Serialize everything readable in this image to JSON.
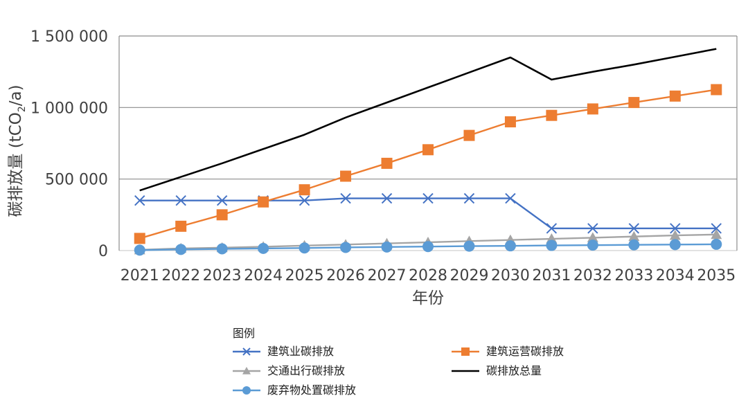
{
  "chart_data": {
    "type": "line",
    "title": "",
    "xlabel": "年份",
    "ylabel": "碳排放量 (tCO",
    "ylabel_sub": "2",
    "ylabel_tail": "/a)",
    "ylim": [
      0,
      1500000
    ],
    "yticks": [
      0,
      500000,
      1000000,
      1500000
    ],
    "ytick_labels": [
      "0",
      "500 000",
      "1 000 000",
      "1 500 000"
    ],
    "x": [
      "2021",
      "2022",
      "2023",
      "2024",
      "2025",
      "2026",
      "2027",
      "2028",
      "2029",
      "2030",
      "2031",
      "2032",
      "2033",
      "2034",
      "2035"
    ],
    "grid": true,
    "legend_title": "图例",
    "legend_position": "bottom",
    "series": [
      {
        "name": "建筑业碳排放",
        "color": "#4472C4",
        "marker": "x",
        "values": [
          350000,
          350000,
          350000,
          350000,
          350000,
          365000,
          365000,
          365000,
          365000,
          365000,
          155000,
          155000,
          155000,
          155000,
          155000
        ]
      },
      {
        "name": "建筑运营碳排放",
        "color": "#ED7D31",
        "marker": "square",
        "values": [
          85000,
          170000,
          250000,
          340000,
          425000,
          520000,
          610000,
          705000,
          805000,
          900000,
          945000,
          990000,
          1035000,
          1080000,
          1125000
        ]
      },
      {
        "name": "交通出行碳排放",
        "color": "#A5A5A5",
        "marker": "triangle",
        "values": [
          5000,
          15000,
          20000,
          27000,
          35000,
          42000,
          50000,
          58000,
          66000,
          74000,
          82000,
          90000,
          98000,
          106000,
          112000
        ]
      },
      {
        "name": "碳排放总量",
        "color": "#000000",
        "marker": "none",
        "values": [
          420000,
          515000,
          610000,
          710000,
          810000,
          930000,
          1035000,
          1140000,
          1245000,
          1350000,
          1195000,
          1250000,
          1300000,
          1355000,
          1410000
        ]
      },
      {
        "name": "废弃物处置碳排放",
        "color": "#5B9BD5",
        "marker": "circle",
        "values": [
          3000,
          8000,
          12000,
          15000,
          18000,
          22000,
          25000,
          28000,
          31000,
          33000,
          36000,
          38000,
          40000,
          42000,
          44000
        ]
      }
    ],
    "legend_order": [
      0,
      1,
      2,
      3,
      4
    ]
  }
}
